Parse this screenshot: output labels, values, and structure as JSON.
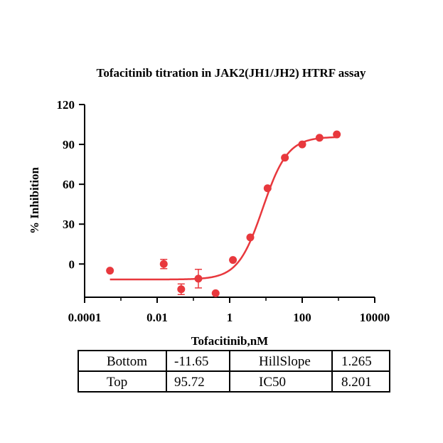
{
  "chart_data": {
    "type": "scatter",
    "title": "Tofacitinib titration in JAK2(JH1/JH2) HTRF assay",
    "xlabel": "Tofacitinib,nM",
    "ylabel": "% Inhibition",
    "xscale": "log",
    "xlim": [
      0.0001,
      10000
    ],
    "ylim": [
      -25,
      120
    ],
    "x_ticks": [
      0.0001,
      0.01,
      1,
      100,
      10000
    ],
    "x_tick_labels": [
      "0.0001",
      "0.01",
      "1",
      "100",
      "10000"
    ],
    "y_ticks": [
      0,
      30,
      60,
      90,
      120
    ],
    "y_tick_labels": [
      "0",
      "30",
      "60",
      "90",
      "120"
    ],
    "series": [
      {
        "name": "Tofacitinib",
        "color": "#e8383d",
        "points": [
          {
            "x": 0.0005,
            "y": -5,
            "err": 0
          },
          {
            "x": 0.0152,
            "y": 0,
            "err": 3.5
          },
          {
            "x": 0.046,
            "y": -19,
            "err": 4
          },
          {
            "x": 0.137,
            "y": -11,
            "err": 7
          },
          {
            "x": 0.41,
            "y": -22,
            "err": 0
          },
          {
            "x": 1.23,
            "y": 3,
            "err": 0
          },
          {
            "x": 3.7,
            "y": 20,
            "err": 0
          },
          {
            "x": 11.1,
            "y": 57,
            "err": 0
          },
          {
            "x": 33.3,
            "y": 80,
            "err": 0
          },
          {
            "x": 100,
            "y": 90,
            "err": 0
          },
          {
            "x": 300,
            "y": 95,
            "err": 0
          },
          {
            "x": 900,
            "y": 97.5,
            "err": 0
          }
        ]
      }
    ],
    "fit": {
      "model": "four-parameter logistic",
      "bottom": -11.65,
      "top": 95.72,
      "hillslope": 1.265,
      "ic50": 8.201,
      "x_range": [
        0.0005,
        900
      ]
    }
  },
  "fit_table": {
    "rows": [
      [
        "Bottom",
        "-11.65",
        "HillSlope",
        "1.265"
      ],
      [
        "Top",
        "95.72",
        "IC50",
        "8.201"
      ]
    ]
  }
}
